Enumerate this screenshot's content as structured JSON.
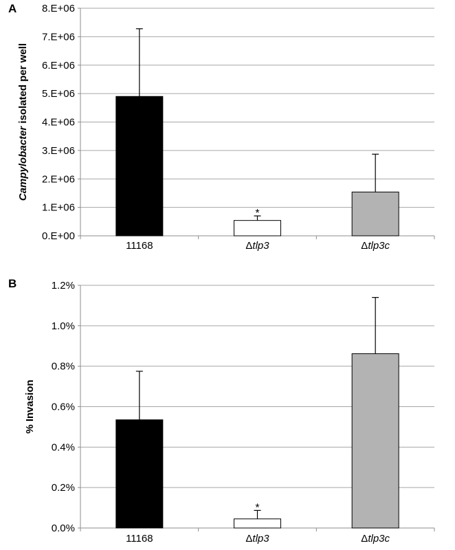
{
  "chart_data": [
    {
      "type": "bar",
      "panel_label": "A",
      "categories": [
        {
          "prefix": "",
          "italic": "11168"
        },
        {
          "prefix": "Δ",
          "italic": "tlp3"
        },
        {
          "prefix": "Δ",
          "italic": "tlp3c"
        }
      ],
      "values": [
        4900000,
        540000,
        1540000
      ],
      "errors": [
        2380000,
        160000,
        1330000
      ],
      "significance": [
        "",
        "*",
        ""
      ],
      "colors": [
        "#000000",
        "#ffffff",
        "#b3b3b3"
      ],
      "ylabel_italic": "Campylobacter",
      "ylabel_rest": " isolated per well",
      "ylim": [
        0,
        8000000
      ],
      "yticks": [
        0,
        1000000,
        2000000,
        3000000,
        4000000,
        5000000,
        6000000,
        7000000,
        8000000
      ],
      "ytick_labels": [
        "0.E+00",
        "1.E+06",
        "2.E+06",
        "3.E+06",
        "4.E+06",
        "5.E+06",
        "6.E+06",
        "7.E+06",
        "8.E+06"
      ],
      "grid": true
    },
    {
      "type": "bar",
      "panel_label": "B",
      "categories": [
        {
          "prefix": "",
          "italic": "11168"
        },
        {
          "prefix": "Δ",
          "italic": "tlp3"
        },
        {
          "prefix": "Δ",
          "italic": "tlp3c"
        }
      ],
      "values": [
        0.535,
        0.045,
        0.862
      ],
      "errors": [
        0.24,
        0.042,
        0.278
      ],
      "significance": [
        "",
        "*",
        ""
      ],
      "colors": [
        "#000000",
        "#ffffff",
        "#b3b3b3"
      ],
      "ylabel_italic": "",
      "ylabel_rest": "% Invasion",
      "ylim": [
        0,
        1.2
      ],
      "yticks": [
        0,
        0.2,
        0.4,
        0.6,
        0.8,
        1.0,
        1.2
      ],
      "ytick_labels": [
        "0.0%",
        "0.2%",
        "0.4%",
        "0.6%",
        "0.8%",
        "1.0%",
        "1.2%"
      ],
      "grid": true
    }
  ]
}
